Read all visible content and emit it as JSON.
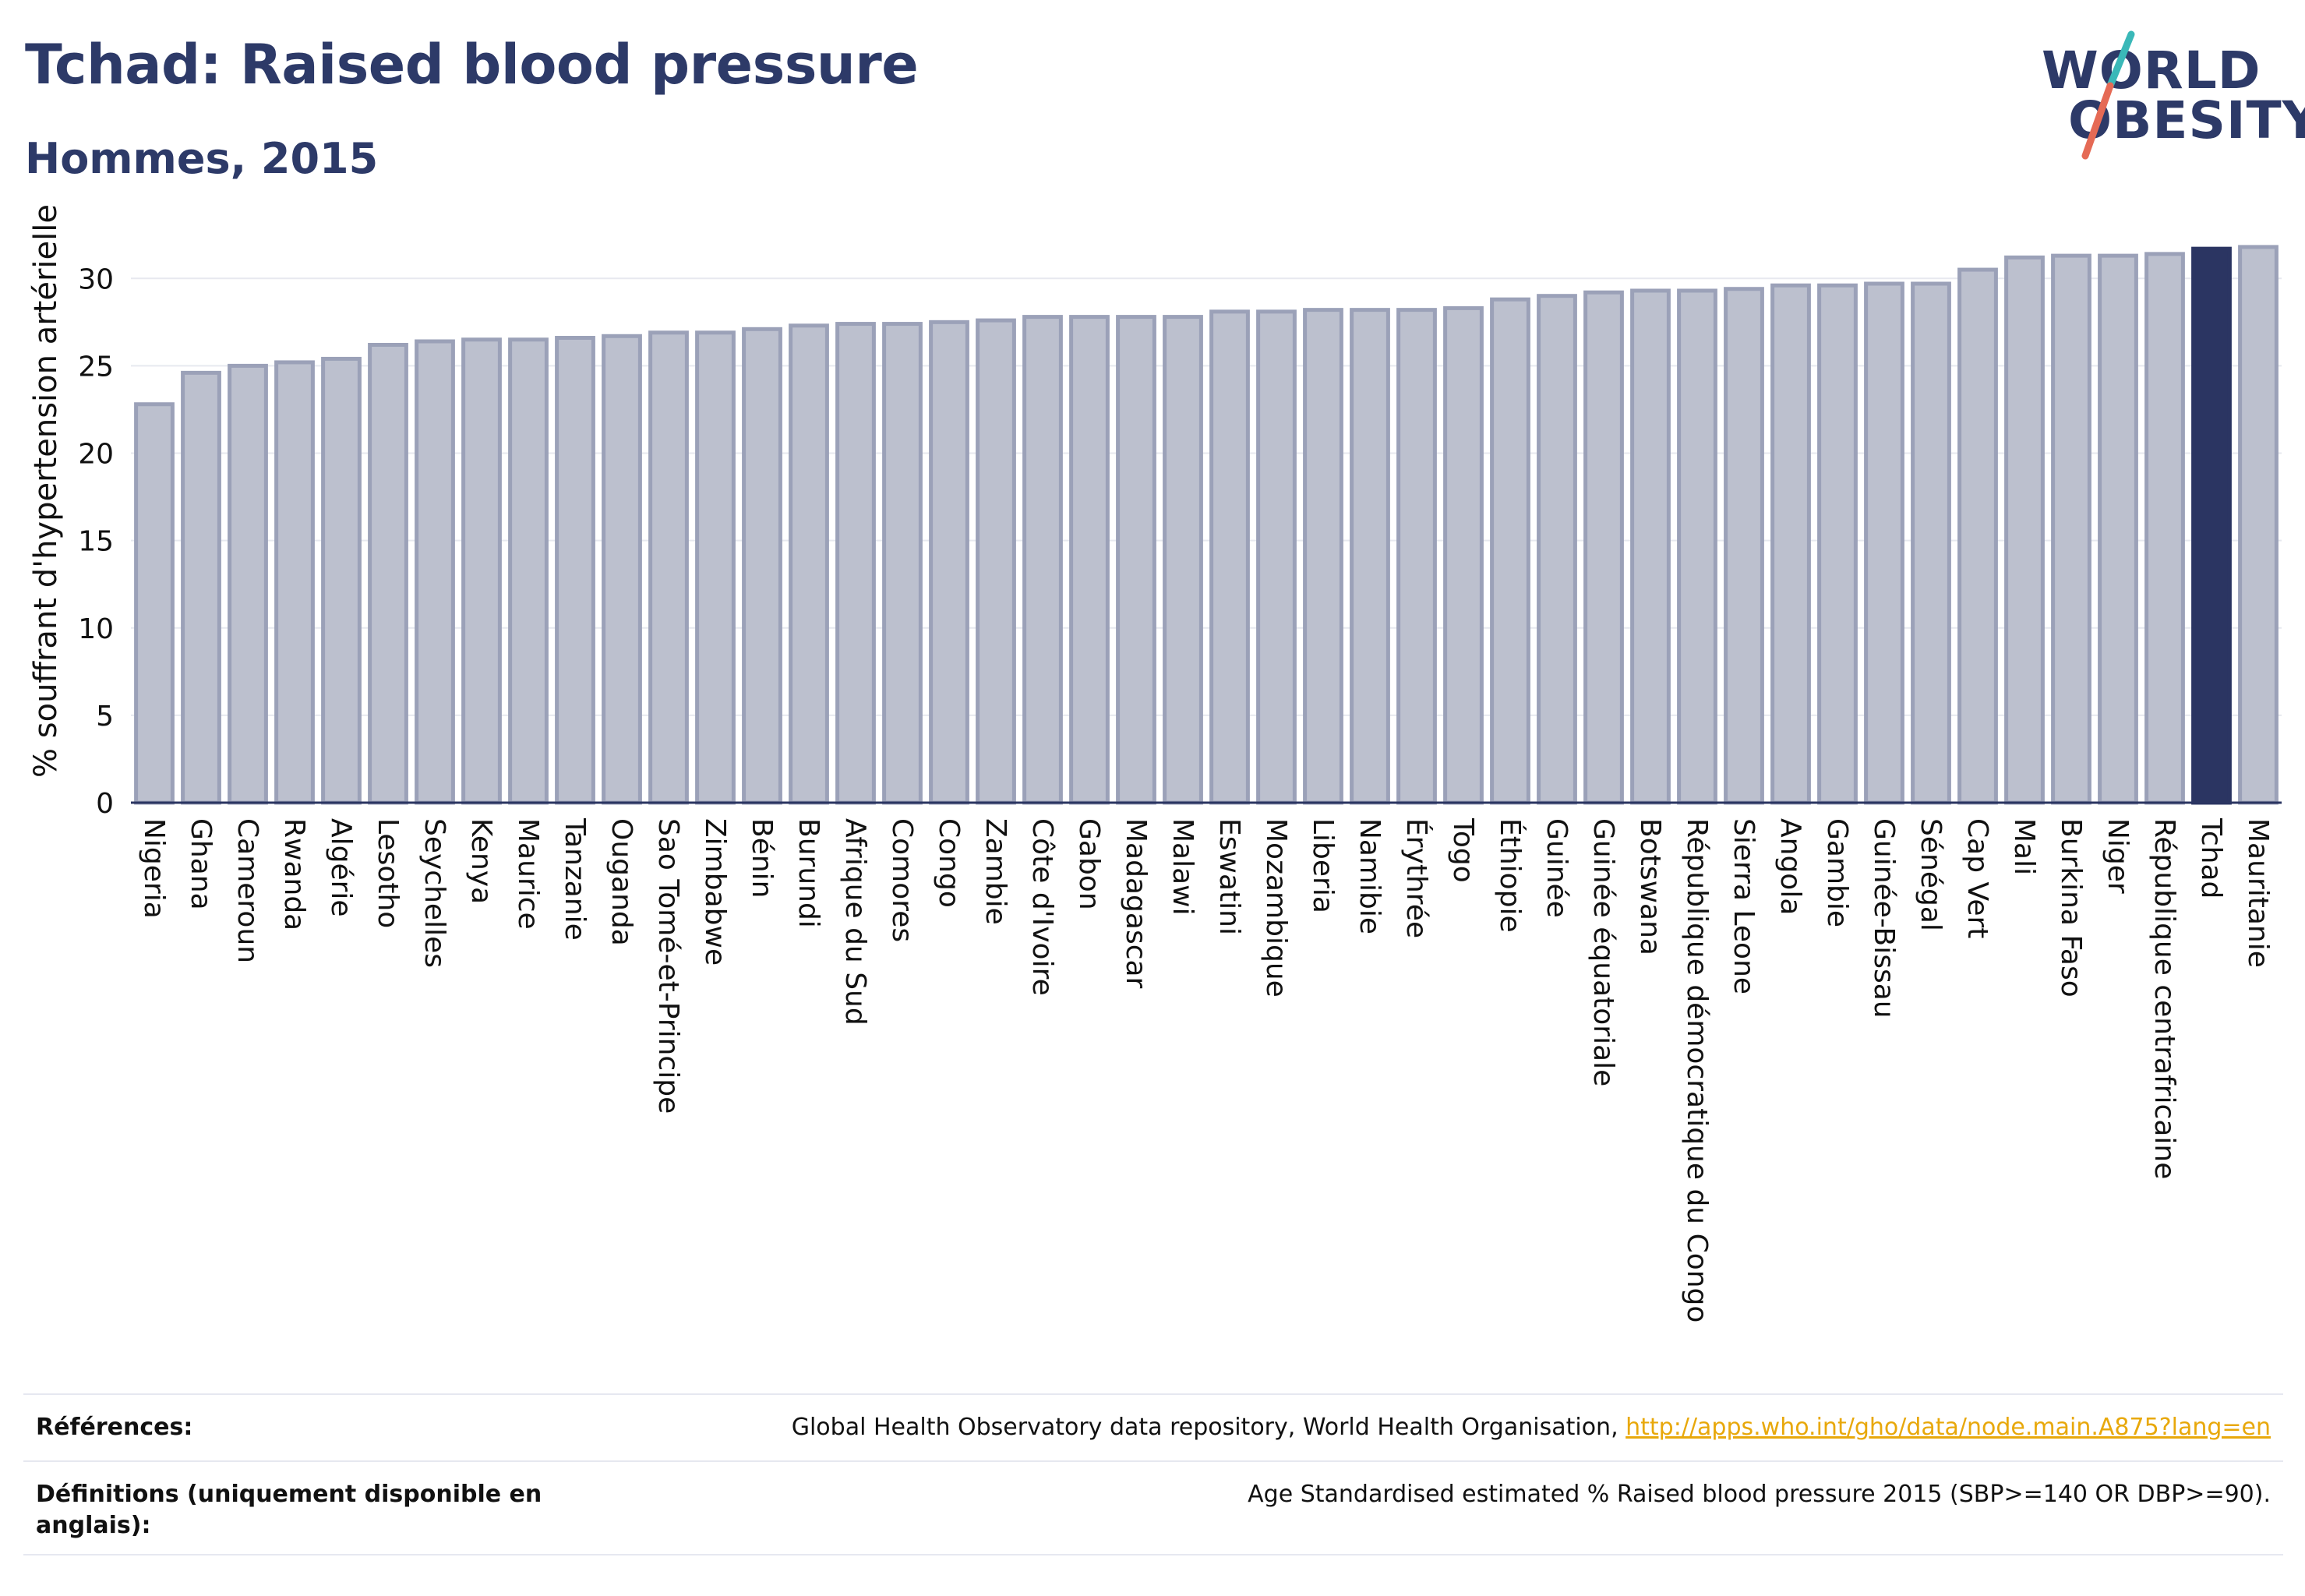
{
  "header": {
    "title": "Tchad: Raised blood pressure",
    "subtitle": "Hommes, 2015"
  },
  "logo": {
    "line1": "WORLD",
    "line2": "OBESITY",
    "accent_teal": "#3ab8b8",
    "accent_red": "#e56a55"
  },
  "chart_data": {
    "type": "bar",
    "ylabel": "% souffrant d'hypertension artérielle",
    "ylim": [
      0,
      33
    ],
    "yticks": [
      0,
      5,
      10,
      15,
      20,
      25,
      30
    ],
    "grid": true,
    "highlight": "Tchad",
    "colors": {
      "bar": "#bcc0ce",
      "bar_edge": "#9ba1b8",
      "highlight": "#2b3562",
      "axis": "#2b3562"
    },
    "categories": [
      "Nigeria",
      "Ghana",
      "Cameroun",
      "Rwanda",
      "Algérie",
      "Lesotho",
      "Seychelles",
      "Kenya",
      "Maurice",
      "Tanzanie",
      "Ouganda",
      "Sao Tomé-et-Principe",
      "Zimbabwe",
      "Bénin",
      "Burundi",
      "Afrique du Sud",
      "Comores",
      "Congo",
      "Zambie",
      "Côte d'Ivoire",
      "Gabon",
      "Madagascar",
      "Malawi",
      "Eswatini",
      "Mozambique",
      "Liberia",
      "Namibie",
      "Érythrée",
      "Togo",
      "Éthiopie",
      "Guinée",
      "Guinée équatoriale",
      "Botswana",
      "République démocratique du Congo",
      "Sierra Leone",
      "Angola",
      "Gambie",
      "Guinée-Bissau",
      "Sénégal",
      "Cap Vert",
      "Mali",
      "Burkina Faso",
      "Niger",
      "République centrafricaine",
      "Tchad",
      "Mauritanie"
    ],
    "values": [
      22.8,
      24.6,
      25.0,
      25.2,
      25.4,
      26.2,
      26.4,
      26.5,
      26.5,
      26.6,
      26.7,
      26.9,
      26.9,
      27.1,
      27.3,
      27.4,
      27.4,
      27.5,
      27.6,
      27.8,
      27.8,
      27.8,
      27.8,
      28.1,
      28.1,
      28.2,
      28.2,
      28.2,
      28.3,
      28.8,
      29.0,
      29.2,
      29.3,
      29.3,
      29.4,
      29.6,
      29.6,
      29.7,
      29.7,
      30.5,
      31.2,
      31.3,
      31.3,
      31.4,
      31.7,
      31.8
    ]
  },
  "footer": {
    "references_label": "Références:",
    "references_text": "Global Health Observatory data repository, World Health Organisation, ",
    "references_link": "http://apps.who.int/gho/data/node.main.A875?lang=en",
    "definitions_label": "Définitions (uniquement disponible en anglais):",
    "definitions_text": "Age Standardised estimated % Raised blood pressure 2015 (SBP>=140 OR DBP>=90)."
  }
}
